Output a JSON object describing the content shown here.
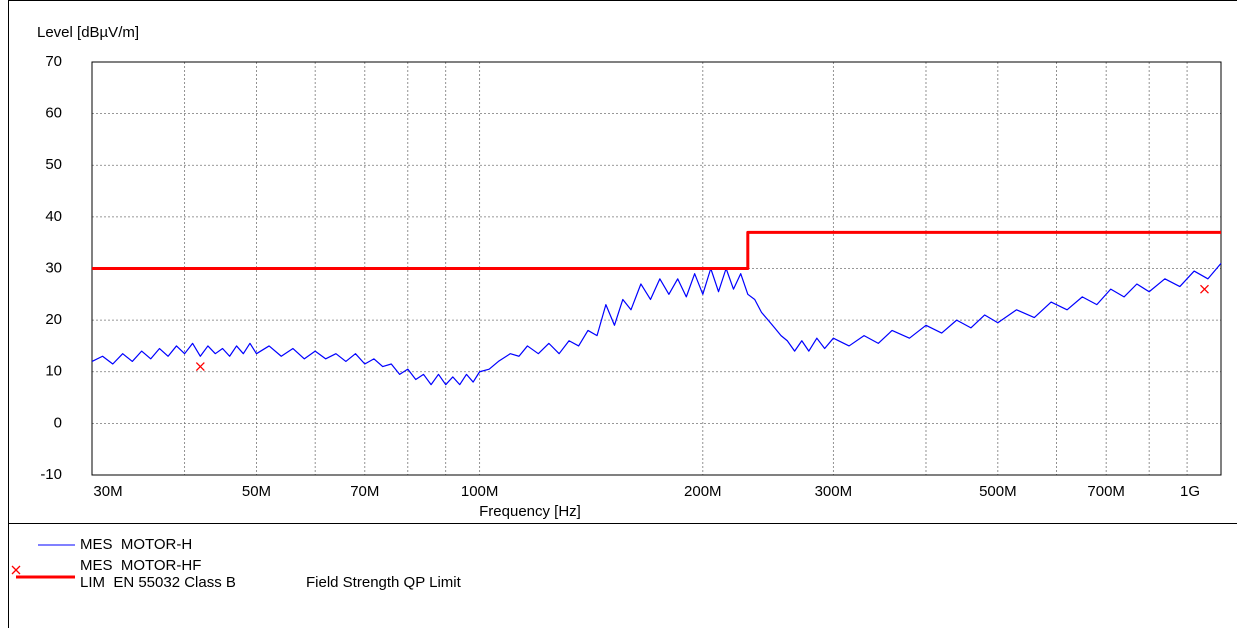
{
  "chart_data": {
    "type": "line",
    "ylabel": "Level [dBµV/m]",
    "xlabel": "Frequency [Hz]",
    "xscale": "log",
    "grid": true,
    "xlim": [
      30000000.0,
      1000000000.0
    ],
    "ylim": [
      -10,
      70
    ],
    "yticks": [
      -10,
      0,
      10,
      20,
      30,
      40,
      50,
      60,
      70
    ],
    "xticks": [
      {
        "value": 30000000.0,
        "label": "30M"
      },
      {
        "value": 50000000.0,
        "label": "50M"
      },
      {
        "value": 70000000.0,
        "label": "70M"
      },
      {
        "value": 100000000.0,
        "label": "100M"
      },
      {
        "value": 200000000.0,
        "label": "200M"
      },
      {
        "value": 300000000.0,
        "label": "300M"
      },
      {
        "value": 500000000.0,
        "label": "500M"
      },
      {
        "value": 700000000.0,
        "label": "700M"
      },
      {
        "value": 1000000000.0,
        "label": "1G"
      }
    ],
    "xminor": [
      40000000.0,
      60000000.0,
      80000000.0,
      90000000.0,
      400000000.0,
      600000000.0,
      800000000.0,
      900000000.0
    ],
    "series": [
      {
        "name": "MES  MOTOR-H",
        "color": "#0000ff",
        "style": "line",
        "x": [
          30000000.0,
          31000000.0,
          32000000.0,
          33000000.0,
          34000000.0,
          35000000.0,
          36000000.0,
          37000000.0,
          38000000.0,
          39000000.0,
          40000000.0,
          41000000.0,
          42000000.0,
          43000000.0,
          44000000.0,
          45000000.0,
          46000000.0,
          47000000.0,
          48000000.0,
          49000000.0,
          50000000.0,
          52000000.0,
          54000000.0,
          56000000.0,
          58000000.0,
          60000000.0,
          62000000.0,
          64000000.0,
          66000000.0,
          68000000.0,
          70000000.0,
          72000000.0,
          74000000.0,
          76000000.0,
          78000000.0,
          80000000.0,
          82000000.0,
          84000000.0,
          86000000.0,
          88000000.0,
          90000000.0,
          92000000.0,
          94000000.0,
          96000000.0,
          98000000.0,
          100000000.0,
          103000000.0,
          106000000.0,
          110000000.0,
          113000000.0,
          116000000.0,
          120000000.0,
          124000000.0,
          128000000.0,
          132000000.0,
          136000000.0,
          140000000.0,
          144000000.0,
          148000000.0,
          152000000.0,
          156000000.0,
          160000000.0,
          165000000.0,
          170000000.0,
          175000000.0,
          180000000.0,
          185000000.0,
          190000000.0,
          195000000.0,
          200000000.0,
          205000000.0,
          210000000.0,
          215000000.0,
          220000000.0,
          225000000.0,
          230000000.0,
          235000000.0,
          240000000.0,
          245000000.0,
          250000000.0,
          255000000.0,
          260000000.0,
          266000000.0,
          272000000.0,
          278000000.0,
          285000000.0,
          292000000.0,
          300000000.0,
          315000000.0,
          330000000.0,
          345000000.0,
          360000000.0,
          380000000.0,
          400000000.0,
          420000000.0,
          440000000.0,
          460000000.0,
          480000000.0,
          500000000.0,
          530000000.0,
          560000000.0,
          590000000.0,
          620000000.0,
          650000000.0,
          680000000.0,
          710000000.0,
          740000000.0,
          770000000.0,
          800000000.0,
          840000000.0,
          880000000.0,
          920000000.0,
          960000000.0,
          1000000000.0
        ],
        "values": [
          12,
          13,
          11.5,
          13.5,
          12,
          14,
          12.5,
          14.5,
          13,
          15,
          13.5,
          15.5,
          13,
          15,
          13.5,
          14.5,
          13,
          15,
          13.5,
          15.5,
          13.5,
          15,
          13,
          14.5,
          12.5,
          14,
          12.5,
          13.5,
          12,
          13.5,
          11.5,
          12.5,
          11,
          11.5,
          9.5,
          10.5,
          8.5,
          9.5,
          7.5,
          9.5,
          7.5,
          9,
          7.5,
          9.5,
          8,
          10,
          10.5,
          12,
          13.5,
          13,
          15,
          13.5,
          15.5,
          13.5,
          16,
          15,
          18,
          17,
          23,
          19,
          24,
          22,
          27,
          24,
          28,
          25,
          28,
          24.5,
          29,
          25,
          30,
          25.5,
          30,
          26,
          29,
          25,
          24,
          21.5,
          20,
          18.5,
          17,
          16,
          14,
          16,
          14,
          16.5,
          14.5,
          16.5,
          15,
          17,
          15.5,
          18,
          16.5,
          19,
          17.5,
          20,
          18.5,
          21,
          19.5,
          22,
          20.5,
          23.5,
          22,
          24.5,
          23,
          26,
          24.5,
          27,
          25.5,
          28,
          26.5,
          29.5,
          28,
          31
        ]
      },
      {
        "name": "MES  MOTOR-HF",
        "color": "#ff0000",
        "style": "cross",
        "x": [
          42000000.0,
          950000000.0
        ],
        "values": [
          11,
          26
        ]
      },
      {
        "name": "LIM  EN 55032 Class B",
        "description": "Field Strength QP Limit",
        "color": "#ff0000",
        "style": "step",
        "x": [
          30000000.0,
          230000000.0,
          230000000.0,
          1000000000.0
        ],
        "values": [
          30,
          30,
          37,
          37
        ]
      }
    ]
  }
}
